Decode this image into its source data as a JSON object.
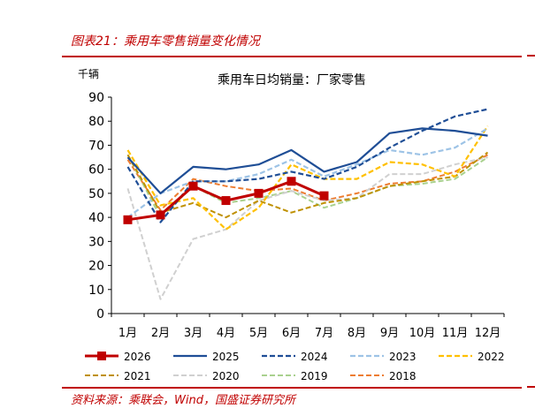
{
  "figure": {
    "title": "图表21：乘用车零售销量变化情况",
    "source": "资料来源：乘联会，Wind，国盛证券研究所"
  },
  "chart_data": {
    "type": "line",
    "title": "乘用车日均销量：厂家零售",
    "ylabel": "千辆",
    "xlabel": "",
    "ylim": [
      0,
      90
    ],
    "yticks": [
      0,
      10,
      20,
      30,
      40,
      50,
      60,
      70,
      80,
      90
    ],
    "grid": false,
    "legend": "bottom",
    "categories": [
      "1月",
      "2月",
      "3月",
      "4月",
      "5月",
      "6月",
      "7月",
      "8月",
      "9月",
      "10月",
      "11月",
      "12月"
    ],
    "series": [
      {
        "name": "2026",
        "color": "#c00000",
        "dash": "solid",
        "width": 3,
        "marker": "square",
        "values": [
          39,
          41,
          53,
          47,
          50,
          55,
          49,
          null,
          null,
          null,
          null,
          null
        ]
      },
      {
        "name": "2025",
        "color": "#1f4e96",
        "dash": "solid",
        "width": 2.2,
        "marker": null,
        "values": [
          65,
          50,
          61,
          60,
          62,
          68,
          59,
          63,
          75,
          77,
          76,
          74
        ]
      },
      {
        "name": "2024",
        "color": "#1f4e96",
        "dash": "dashed",
        "width": 2.2,
        "marker": null,
        "values": [
          61,
          38,
          55,
          55,
          56,
          59,
          56,
          61,
          69,
          76,
          82,
          85
        ]
      },
      {
        "name": "2023",
        "color": "#9dc3e6",
        "dash": "dashed",
        "width": 2.2,
        "marker": null,
        "values": [
          40,
          50,
          55,
          55,
          58,
          64,
          57,
          62,
          68,
          66,
          69,
          77
        ]
      },
      {
        "name": "2022",
        "color": "#ffc000",
        "dash": "dashed",
        "width": 2.2,
        "marker": null,
        "values": [
          68,
          45,
          48,
          35,
          44,
          62,
          56,
          56,
          63,
          62,
          57,
          78
        ]
      },
      {
        "name": "2021",
        "color": "#bf9000",
        "dash": "dashed",
        "width": 2,
        "marker": null,
        "values": [
          66,
          42,
          46,
          40,
          47,
          42,
          46,
          48,
          53,
          55,
          57,
          67
        ]
      },
      {
        "name": "2020",
        "color": "#d0d0d0",
        "dash": "dashed",
        "width": 2,
        "marker": null,
        "values": [
          52,
          6,
          31,
          35,
          47,
          51,
          47,
          48,
          58,
          58,
          62,
          65
        ]
      },
      {
        "name": "2019",
        "color": "#a9d18e",
        "dash": "dashed",
        "width": 2,
        "marker": null,
        "values": [
          66,
          40,
          53,
          46,
          48,
          51,
          44,
          48,
          53,
          54,
          56,
          65
        ]
      },
      {
        "name": "2018",
        "color": "#ed7d31",
        "dash": "dashed",
        "width": 2,
        "marker": null,
        "values": [
          64,
          43,
          56,
          53,
          51,
          52,
          47,
          50,
          54,
          55,
          59,
          66
        ]
      }
    ]
  }
}
